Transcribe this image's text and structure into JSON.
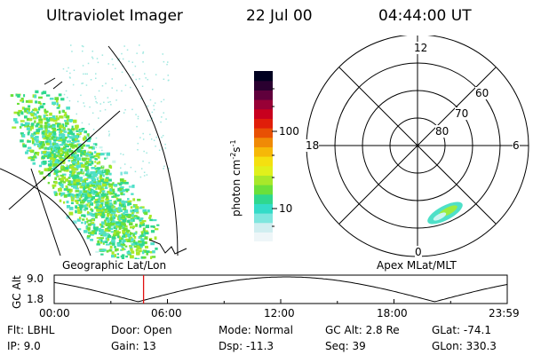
{
  "header": {
    "instrument": "Ultraviolet Imager",
    "date": "22 Jul 00",
    "time": "04:44:00 UT"
  },
  "colorbar": {
    "unit_label": "photon cm",
    "unit_sup1": "-2",
    "unit_mid": "s",
    "unit_sup2": "-1",
    "tick_100": "100",
    "tick_10": "10",
    "colors": [
      "#eef6f8",
      "#d0eef0",
      "#7fe6de",
      "#34dcc8",
      "#2fd88e",
      "#6be03a",
      "#a8e82a",
      "#e0f01c",
      "#f4e010",
      "#f6b808",
      "#f08a06",
      "#e85004",
      "#e01e0a",
      "#c8001e",
      "#980036",
      "#60003c",
      "#2a0030",
      "#000020"
    ]
  },
  "map_left": {
    "label": "Geographic Lat/Lon"
  },
  "map_right": {
    "label": "Apex MLat/MLT",
    "mlt_top": "12",
    "mlt_left": "18",
    "mlt_right": "6",
    "mlt_bottom": "0",
    "lat_60": "60",
    "lat_70": "70",
    "lat_80": "80"
  },
  "altitude_plot": {
    "ylabel": "GC Alt",
    "ytick_top": "9.0",
    "ytick_bottom": "1.8",
    "xticks": [
      "00:00",
      "06:00",
      "12:00",
      "18:00",
      "23:59"
    ],
    "current_marker_hour": 4.733
  },
  "info": {
    "flt": "Flt: LBHL",
    "ip": "IP:  9.0",
    "door": "Door: Open",
    "gain": "Gain: 13",
    "mode": "Mode: Normal",
    "dsp": "Dsp:  -11.3",
    "gc_alt": "GC Alt: 2.8 Re",
    "seq": "Seq: 39",
    "glat": "GLat: -74.1",
    "glon": "GLon: 330.3"
  }
}
